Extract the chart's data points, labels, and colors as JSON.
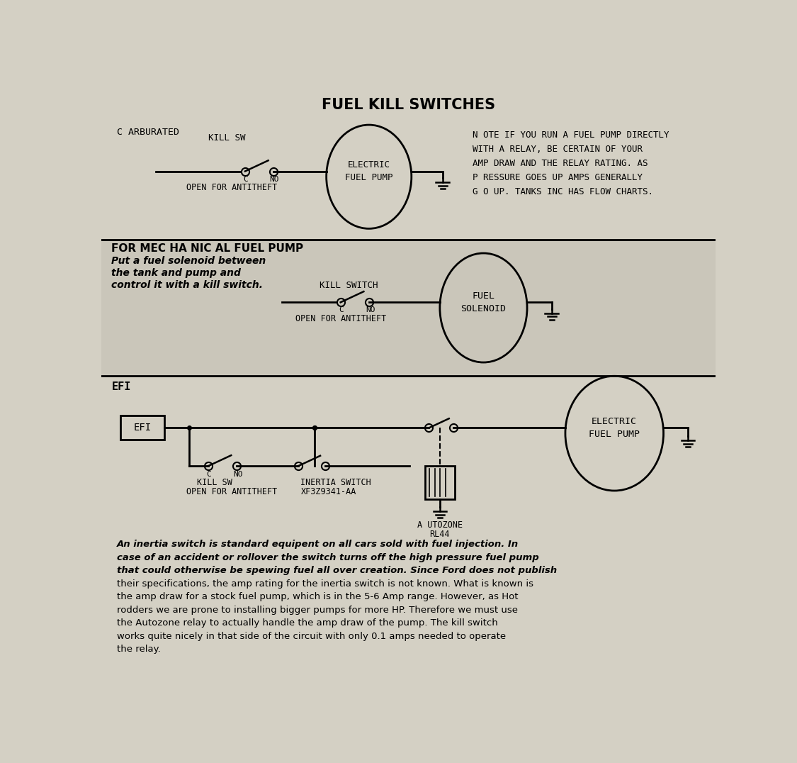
{
  "title": "FUEL KILL SWITCHES",
  "bg_color": "#d4d0c4",
  "bg_color2": "#ccc8bc",
  "line_color": "#000000",
  "text_color": "#000000",
  "section1": {
    "label": "C ARBURATED",
    "kill_sw_label": "KILL SW",
    "open_label": "OPEN FOR ANTITHEFT",
    "c_label": "C",
    "no_label": "NO",
    "circle_label": "ELECTRIC\nFUEL PUMP",
    "note": "N OTE IF YOU RUN A FUEL PUMP DIRECTLY\nWITH A RELAY, BE CERTAIN OF YOUR\nAMP DRAW AND THE RELAY RATING. AS\nP RESSURE GOES UP AMPS GENERALLY\nG O UP. TANKS INC HAS FLOW CHARTS."
  },
  "section2": {
    "bold_label": "FOR MEC HA NIC AL FUEL PUMP",
    "italic_lines": [
      "Put a fuel solenoid between",
      "the tank and pump and",
      "control it with a kill switch."
    ],
    "kill_sw_label": "KILL SWITCH",
    "open_label": "OPEN FOR ANTITHEFT",
    "c_label": "C",
    "no_label": "NO",
    "circle_label": "FUEL\nSOLENOID"
  },
  "section3": {
    "efi_label": "EFI",
    "box_label": "EFI",
    "c_label": "C",
    "no_label": "NO",
    "inertia_line1": "INERTIA SWITCH",
    "inertia_line2": "XF3Z9341-AA",
    "relay_line1": "A UTOZONE",
    "relay_line2": "RL44",
    "circle_label": "ELECTRIC\nFUEL PUMP",
    "kill_sw_line1": "KILL SW",
    "kill_sw_line2": "OPEN FOR ANTITHEFT"
  },
  "footer_lines": [
    "An inertia switch is standard equipent on all cars sold with fuel injection. In",
    "case of an accident or rollover the switch turns off the high pressure fuel pump",
    "that could otherwise be spewing fuel all over creation. Since Ford does not publish",
    "their specifications, the amp rating for the inertia switch is not known. What is known is",
    "the amp draw for a stock fuel pump, which is in the 5-6 Amp range. However, as Hot",
    "rodders we are prone to installing bigger pumps for more HP. Therefore we must use",
    "the Autozone relay to actually handle the amp draw of the pump. The kill switch",
    "works quite nicely in that side of the circuit with only 0.1 amps needed to operate",
    "the relay."
  ]
}
